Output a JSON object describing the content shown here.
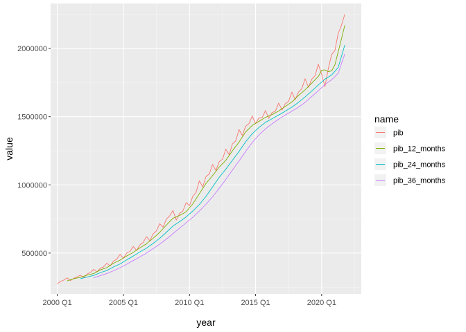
{
  "chart_data": {
    "type": "line",
    "xlabel": "year",
    "ylabel": "value",
    "x_axis": {
      "type": "date",
      "range": [
        "1999-07-01",
        "2022-12-31"
      ],
      "ticks": [
        {
          "date": "2000-01-01",
          "label": "2000 Q1"
        },
        {
          "date": "2005-01-01",
          "label": "2005 Q1"
        },
        {
          "date": "2010-01-01",
          "label": "2010 Q1"
        },
        {
          "date": "2015-01-01",
          "label": "2015 Q1"
        },
        {
          "date": "2020-01-01",
          "label": "2020 Q1"
        }
      ]
    },
    "y_axis": {
      "range": [
        200000,
        2330000
      ],
      "ticks": [
        {
          "value": 500000,
          "label": "500000"
        },
        {
          "value": 1000000,
          "label": "1000000"
        },
        {
          "value": 1500000,
          "label": "1500000"
        },
        {
          "value": 2000000,
          "label": "2000000"
        }
      ]
    },
    "grid": true,
    "legend": {
      "title": "name",
      "position": "right"
    },
    "series": [
      {
        "name": "pib",
        "color": "#F8766D",
        "points": [
          [
            "2000-01-01",
            275000
          ],
          [
            "2000-04-01",
            292000
          ],
          [
            "2000-07-01",
            302000
          ],
          [
            "2000-10-01",
            318000
          ],
          [
            "2001-01-01",
            298000
          ],
          [
            "2001-04-01",
            315000
          ],
          [
            "2001-07-01",
            325000
          ],
          [
            "2001-10-01",
            338000
          ],
          [
            "2002-01-01",
            318000
          ],
          [
            "2002-04-01",
            345000
          ],
          [
            "2002-07-01",
            358000
          ],
          [
            "2002-10-01",
            380000
          ],
          [
            "2003-01-01",
            362000
          ],
          [
            "2003-04-01",
            388000
          ],
          [
            "2003-07-01",
            398000
          ],
          [
            "2003-10-01",
            425000
          ],
          [
            "2004-01-01",
            405000
          ],
          [
            "2004-04-01",
            440000
          ],
          [
            "2004-07-01",
            455000
          ],
          [
            "2004-10-01",
            490000
          ],
          [
            "2005-01-01",
            462000
          ],
          [
            "2005-04-01",
            500000
          ],
          [
            "2005-07-01",
            512000
          ],
          [
            "2005-10-01",
            548000
          ],
          [
            "2006-01-01",
            520000
          ],
          [
            "2006-04-01",
            560000
          ],
          [
            "2006-07-01",
            578000
          ],
          [
            "2006-10-01",
            620000
          ],
          [
            "2007-01-01",
            590000
          ],
          [
            "2007-04-01",
            640000
          ],
          [
            "2007-07-01",
            662000
          ],
          [
            "2007-10-01",
            715000
          ],
          [
            "2008-01-01",
            690000
          ],
          [
            "2008-04-01",
            748000
          ],
          [
            "2008-07-01",
            772000
          ],
          [
            "2008-10-01",
            812000
          ],
          [
            "2009-01-01",
            742000
          ],
          [
            "2009-04-01",
            790000
          ],
          [
            "2009-07-01",
            808000
          ],
          [
            "2009-10-01",
            870000
          ],
          [
            "2010-01-01",
            848000
          ],
          [
            "2010-04-01",
            915000
          ],
          [
            "2010-07-01",
            945000
          ],
          [
            "2010-10-01",
            1030000
          ],
          [
            "2011-01-01",
            985000
          ],
          [
            "2011-04-01",
            1060000
          ],
          [
            "2011-07-01",
            1080000
          ],
          [
            "2011-10-01",
            1150000
          ],
          [
            "2012-01-01",
            1105000
          ],
          [
            "2012-04-01",
            1170000
          ],
          [
            "2012-07-01",
            1188000
          ],
          [
            "2012-10-01",
            1262000
          ],
          [
            "2013-01-01",
            1220000
          ],
          [
            "2013-04-01",
            1300000
          ],
          [
            "2013-07-01",
            1322000
          ],
          [
            "2013-10-01",
            1405000
          ],
          [
            "2014-01-01",
            1362000
          ],
          [
            "2014-04-01",
            1430000
          ],
          [
            "2014-07-01",
            1448000
          ],
          [
            "2014-10-01",
            1505000
          ],
          [
            "2015-01-01",
            1448000
          ],
          [
            "2015-04-01",
            1490000
          ],
          [
            "2015-07-01",
            1492000
          ],
          [
            "2015-10-01",
            1545000
          ],
          [
            "2016-01-01",
            1488000
          ],
          [
            "2016-04-01",
            1530000
          ],
          [
            "2016-07-01",
            1540000
          ],
          [
            "2016-10-01",
            1600000
          ],
          [
            "2017-01-01",
            1548000
          ],
          [
            "2017-04-01",
            1595000
          ],
          [
            "2017-07-01",
            1612000
          ],
          [
            "2017-10-01",
            1680000
          ],
          [
            "2018-01-01",
            1625000
          ],
          [
            "2018-04-01",
            1680000
          ],
          [
            "2018-07-01",
            1705000
          ],
          [
            "2018-10-01",
            1778000
          ],
          [
            "2019-01-01",
            1715000
          ],
          [
            "2019-04-01",
            1775000
          ],
          [
            "2019-07-01",
            1800000
          ],
          [
            "2019-10-01",
            1885000
          ],
          [
            "2020-01-01",
            1810000
          ],
          [
            "2020-04-01",
            1720000
          ],
          [
            "2020-07-01",
            1850000
          ],
          [
            "2020-10-01",
            1955000
          ],
          [
            "2021-01-01",
            1985000
          ],
          [
            "2021-04-01",
            2110000
          ],
          [
            "2021-07-01",
            2170000
          ],
          [
            "2021-10-01",
            2250000
          ]
        ]
      },
      {
        "name": "pib_12_months",
        "color": "#7CAE00",
        "points": [
          [
            "2000-10-01",
            296000
          ],
          [
            "2001-04-01",
            312000
          ],
          [
            "2001-10-01",
            322000
          ],
          [
            "2002-04-01",
            338000
          ],
          [
            "2002-10-01",
            350000
          ],
          [
            "2003-04-01",
            376000
          ],
          [
            "2003-10-01",
            393000
          ],
          [
            "2004-04-01",
            425000
          ],
          [
            "2004-10-01",
            448000
          ],
          [
            "2005-04-01",
            478000
          ],
          [
            "2005-10-01",
            505000
          ],
          [
            "2006-04-01",
            538000
          ],
          [
            "2006-10-01",
            568000
          ],
          [
            "2007-04-01",
            608000
          ],
          [
            "2007-10-01",
            652000
          ],
          [
            "2008-04-01",
            705000
          ],
          [
            "2008-10-01",
            755000
          ],
          [
            "2009-04-01",
            775000
          ],
          [
            "2009-10-01",
            803000
          ],
          [
            "2010-04-01",
            860000
          ],
          [
            "2010-10-01",
            935000
          ],
          [
            "2011-04-01",
            1010000
          ],
          [
            "2011-10-01",
            1068000
          ],
          [
            "2012-04-01",
            1130000
          ],
          [
            "2012-10-01",
            1180000
          ],
          [
            "2013-04-01",
            1250000
          ],
          [
            "2013-10-01",
            1313000
          ],
          [
            "2014-04-01",
            1388000
          ],
          [
            "2014-10-01",
            1436000
          ],
          [
            "2015-04-01",
            1465000
          ],
          [
            "2015-10-01",
            1495000
          ],
          [
            "2016-04-01",
            1515000
          ],
          [
            "2016-10-01",
            1542000
          ],
          [
            "2017-04-01",
            1575000
          ],
          [
            "2017-10-01",
            1608000
          ],
          [
            "2018-04-01",
            1655000
          ],
          [
            "2018-10-01",
            1697000
          ],
          [
            "2019-04-01",
            1745000
          ],
          [
            "2019-10-01",
            1795000
          ],
          [
            "2020-01-01",
            1840000
          ],
          [
            "2020-04-01",
            1843000
          ],
          [
            "2020-07-01",
            1830000
          ],
          [
            "2020-10-01",
            1835000
          ],
          [
            "2021-01-01",
            1880000
          ],
          [
            "2021-04-01",
            1975000
          ],
          [
            "2021-07-01",
            2070000
          ],
          [
            "2021-10-01",
            2170000
          ]
        ]
      },
      {
        "name": "pib_24_months",
        "color": "#00BFC4",
        "points": [
          [
            "2001-10-01",
            312000
          ],
          [
            "2002-04-01",
            324000
          ],
          [
            "2002-10-01",
            336000
          ],
          [
            "2003-04-01",
            356000
          ],
          [
            "2003-10-01",
            372000
          ],
          [
            "2004-04-01",
            398000
          ],
          [
            "2004-10-01",
            420000
          ],
          [
            "2005-04-01",
            450000
          ],
          [
            "2005-10-01",
            478000
          ],
          [
            "2006-04-01",
            508000
          ],
          [
            "2006-10-01",
            536000
          ],
          [
            "2007-04-01",
            570000
          ],
          [
            "2007-10-01",
            608000
          ],
          [
            "2008-04-01",
            652000
          ],
          [
            "2008-10-01",
            698000
          ],
          [
            "2009-04-01",
            730000
          ],
          [
            "2009-10-01",
            765000
          ],
          [
            "2010-04-01",
            808000
          ],
          [
            "2010-10-01",
            856000
          ],
          [
            "2011-04-01",
            915000
          ],
          [
            "2011-10-01",
            985000
          ],
          [
            "2012-04-01",
            1055000
          ],
          [
            "2012-10-01",
            1115000
          ],
          [
            "2013-04-01",
            1180000
          ],
          [
            "2013-10-01",
            1245000
          ],
          [
            "2014-04-01",
            1315000
          ],
          [
            "2014-10-01",
            1375000
          ],
          [
            "2015-04-01",
            1420000
          ],
          [
            "2015-10-01",
            1458000
          ],
          [
            "2016-04-01",
            1485000
          ],
          [
            "2016-10-01",
            1512000
          ],
          [
            "2017-04-01",
            1540000
          ],
          [
            "2017-10-01",
            1570000
          ],
          [
            "2018-04-01",
            1605000
          ],
          [
            "2018-10-01",
            1645000
          ],
          [
            "2019-04-01",
            1688000
          ],
          [
            "2019-10-01",
            1732000
          ],
          [
            "2020-04-01",
            1775000
          ],
          [
            "2020-10-01",
            1805000
          ],
          [
            "2021-04-01",
            1860000
          ],
          [
            "2021-10-01",
            2025000
          ]
        ]
      },
      {
        "name": "pib_36_months",
        "color": "#C77CFF",
        "points": [
          [
            "2002-10-01",
            318000
          ],
          [
            "2003-04-01",
            334000
          ],
          [
            "2003-10-01",
            350000
          ],
          [
            "2004-04-01",
            370000
          ],
          [
            "2004-10-01",
            392000
          ],
          [
            "2005-04-01",
            418000
          ],
          [
            "2005-10-01",
            445000
          ],
          [
            "2006-04-01",
            472000
          ],
          [
            "2006-10-01",
            500000
          ],
          [
            "2007-04-01",
            532000
          ],
          [
            "2007-10-01",
            565000
          ],
          [
            "2008-04-01",
            602000
          ],
          [
            "2008-10-01",
            642000
          ],
          [
            "2009-04-01",
            682000
          ],
          [
            "2009-10-01",
            722000
          ],
          [
            "2010-04-01",
            762000
          ],
          [
            "2010-10-01",
            808000
          ],
          [
            "2011-04-01",
            858000
          ],
          [
            "2011-10-01",
            912000
          ],
          [
            "2012-04-01",
            975000
          ],
          [
            "2012-10-01",
            1040000
          ],
          [
            "2013-04-01",
            1108000
          ],
          [
            "2013-10-01",
            1175000
          ],
          [
            "2014-04-01",
            1245000
          ],
          [
            "2014-10-01",
            1310000
          ],
          [
            "2015-04-01",
            1365000
          ],
          [
            "2015-10-01",
            1410000
          ],
          [
            "2016-04-01",
            1448000
          ],
          [
            "2016-10-01",
            1482000
          ],
          [
            "2017-04-01",
            1512000
          ],
          [
            "2017-10-01",
            1540000
          ],
          [
            "2018-04-01",
            1570000
          ],
          [
            "2018-10-01",
            1605000
          ],
          [
            "2019-04-01",
            1648000
          ],
          [
            "2019-10-01",
            1690000
          ],
          [
            "2020-04-01",
            1735000
          ],
          [
            "2020-10-01",
            1770000
          ],
          [
            "2021-04-01",
            1818000
          ],
          [
            "2021-10-01",
            1960000
          ]
        ]
      }
    ]
  }
}
